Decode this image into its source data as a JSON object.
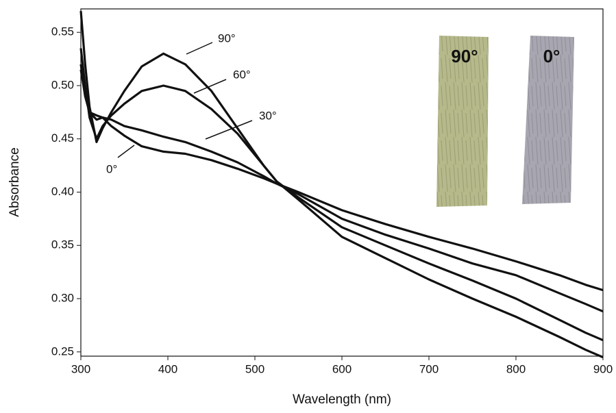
{
  "chart_data": {
    "type": "line",
    "xlabel": "Wavelength (nm)",
    "ylabel": "Absorbance",
    "x": [
      300,
      305,
      310,
      318,
      325,
      335,
      350,
      370,
      395,
      420,
      450,
      480,
      510,
      525,
      550,
      600,
      650,
      700,
      750,
      800,
      850,
      880,
      900
    ],
    "series": [
      {
        "name": "90°",
        "color": "#111111",
        "values": [
          0.57,
          0.52,
          0.48,
          0.447,
          0.46,
          0.475,
          0.495,
          0.518,
          0.53,
          0.52,
          0.495,
          0.46,
          0.425,
          0.41,
          0.393,
          0.358,
          0.338,
          0.318,
          0.3,
          0.283,
          0.264,
          0.252,
          0.245
        ]
      },
      {
        "name": "60°",
        "color": "#111111",
        "values": [
          0.535,
          0.5,
          0.47,
          0.45,
          0.462,
          0.472,
          0.483,
          0.495,
          0.5,
          0.495,
          0.478,
          0.455,
          0.425,
          0.41,
          0.395,
          0.367,
          0.35,
          0.333,
          0.317,
          0.3,
          0.28,
          0.268,
          0.261
        ]
      },
      {
        "name": "30°",
        "color": "#111111",
        "values": [
          0.52,
          0.49,
          0.475,
          0.468,
          0.47,
          0.468,
          0.462,
          0.458,
          0.452,
          0.447,
          0.438,
          0.428,
          0.415,
          0.408,
          0.398,
          0.375,
          0.36,
          0.347,
          0.333,
          0.322,
          0.305,
          0.295,
          0.288
        ]
      },
      {
        "name": "0°",
        "color": "#111111",
        "values": [
          0.515,
          0.49,
          0.475,
          0.472,
          0.47,
          0.462,
          0.453,
          0.443,
          0.438,
          0.436,
          0.43,
          0.422,
          0.413,
          0.408,
          0.4,
          0.383,
          0.37,
          0.358,
          0.347,
          0.335,
          0.322,
          0.313,
          0.308
        ]
      }
    ],
    "inset_labels": [
      "90°",
      "0°"
    ],
    "xlim": [
      300,
      900
    ],
    "xticks": [
      300,
      400,
      500,
      600,
      700,
      800,
      900
    ],
    "ylim": [
      0.246,
      0.572
    ],
    "yticks": [
      0.25,
      {
        "value": 0.3,
        "label": "0.30"
      },
      0.35,
      {
        "value": 0.4,
        "label": "0.40"
      },
      0.45,
      {
        "value": 0.5,
        "label": "0.50"
      },
      0.55
    ]
  }
}
